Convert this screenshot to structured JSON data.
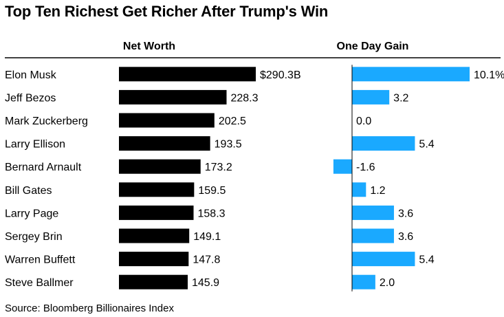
{
  "colors": {
    "networth_bar": "#000000",
    "gain_bar": "#1aa9ff",
    "rule": "#000000",
    "text": "#000000"
  },
  "chart_data": {
    "type": "bar",
    "title": "Top Ten Richest Get Richer After Trump's Win",
    "source": "Source: Bloomberg Billionaires Index",
    "categories": [
      "Elon Musk",
      "Jeff Bezos",
      "Mark Zuckerberg",
      "Larry Ellison",
      "Bernard Arnault",
      "Bill Gates",
      "Larry Page",
      "Sergey Brin",
      "Warren Buffett",
      "Steve Ballmer"
    ],
    "series": [
      {
        "name": "Net Worth",
        "values": [
          290.3,
          228.3,
          202.5,
          193.5,
          173.2,
          159.5,
          158.3,
          149.1,
          147.8,
          145.9
        ],
        "labels": [
          "$290.3B",
          "228.3",
          "202.5",
          "193.5",
          "173.2",
          "159.5",
          "158.3",
          "149.1",
          "147.8",
          "145.9"
        ]
      },
      {
        "name": "One Day Gain",
        "values": [
          10.1,
          3.2,
          0.0,
          5.4,
          -1.6,
          1.2,
          3.6,
          3.6,
          5.4,
          2.0
        ],
        "labels": [
          "10.1%",
          "3.2",
          "0.0",
          "5.4",
          "-1.6",
          "1.2",
          "3.6",
          "3.6",
          "5.4",
          "2.0"
        ]
      }
    ]
  }
}
